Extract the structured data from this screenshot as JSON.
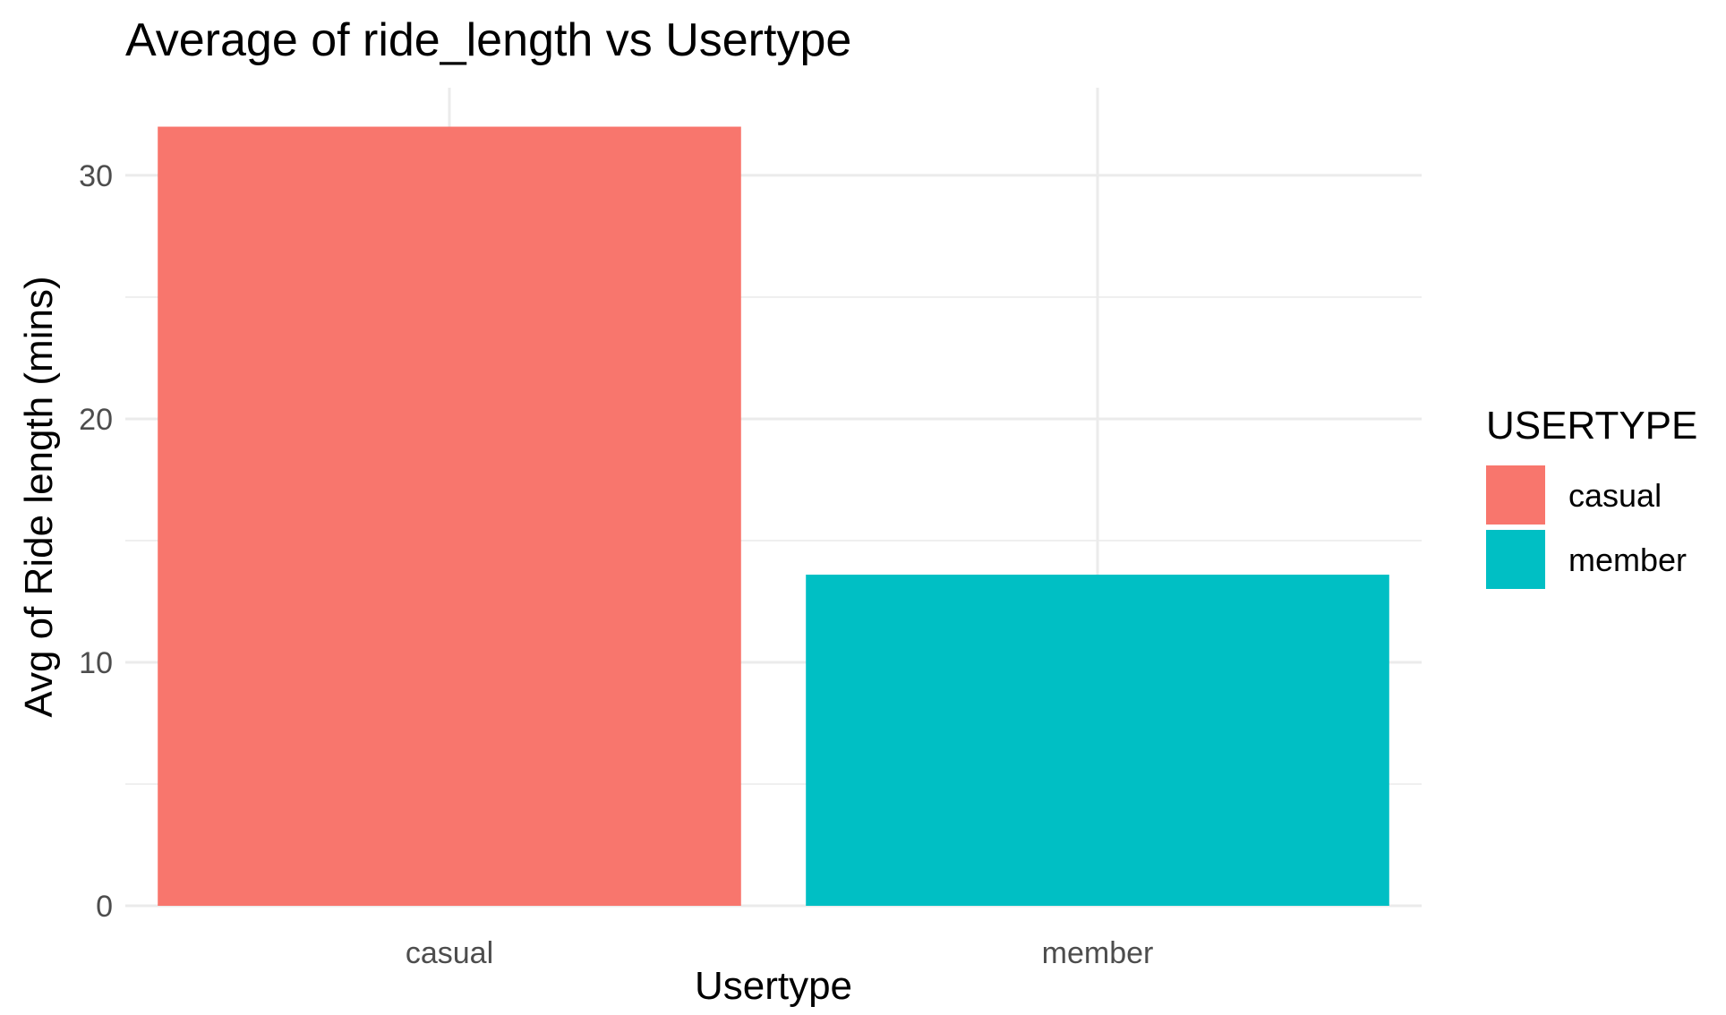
{
  "chart_data": {
    "type": "bar",
    "title": "Average of ride_length vs Usertype",
    "xlabel": "Usertype",
    "ylabel": "Avg of Ride length (mins)",
    "categories": [
      "casual",
      "member"
    ],
    "values": [
      32.0,
      13.6
    ],
    "colors": [
      "#F8766D",
      "#00BFC4"
    ],
    "ylim": [
      0,
      33.6
    ],
    "yticks": [
      0,
      10,
      20,
      30
    ],
    "yticks_labels": [
      "0",
      "10",
      "20",
      "30"
    ],
    "y_minor_ticks": [
      5,
      15,
      25
    ],
    "grid": true,
    "legend": {
      "title": "USERTYPE",
      "placement": "right",
      "entries": [
        {
          "label": "casual",
          "color": "#F8766D"
        },
        {
          "label": "member",
          "color": "#00BFC4"
        }
      ]
    }
  }
}
